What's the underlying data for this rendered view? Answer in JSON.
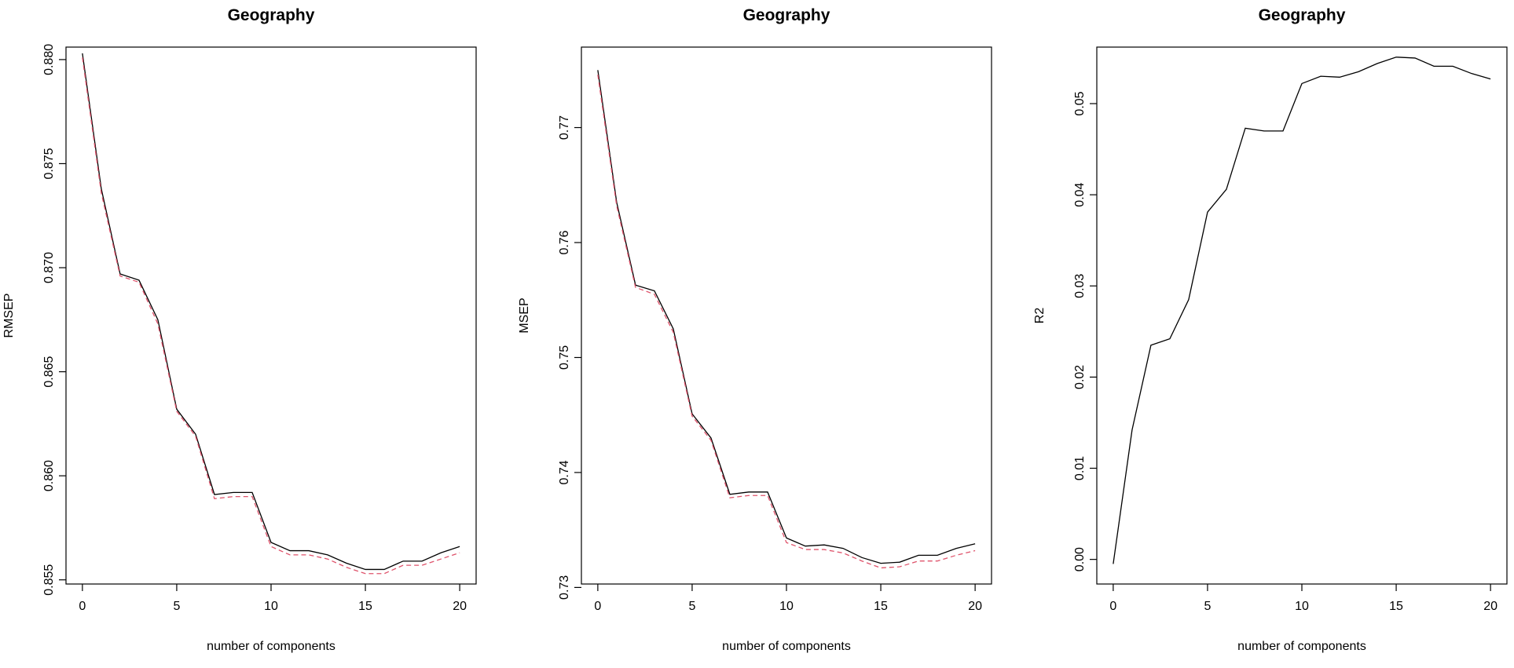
{
  "chart_data": [
    {
      "type": "line",
      "title": "Geography",
      "xlabel": "number of components",
      "ylabel": "RMSEP",
      "xlim": [
        0,
        20
      ],
      "ylim": [
        0.8548,
        0.8806
      ],
      "xticks": [
        "0",
        "5",
        "10",
        "15",
        "20"
      ],
      "yticks": [
        "0.855",
        "0.860",
        "0.865",
        "0.870",
        "0.875",
        "0.880"
      ],
      "x": [
        0,
        1,
        2,
        3,
        4,
        5,
        6,
        7,
        8,
        9,
        10,
        11,
        12,
        13,
        14,
        15,
        16,
        17,
        18,
        19,
        20
      ],
      "series": [
        {
          "style": "solid",
          "color": "#000000",
          "values": [
            0.8803,
            0.8738,
            0.8697,
            0.8694,
            0.8675,
            0.8632,
            0.862,
            0.8591,
            0.8592,
            0.8592,
            0.8568,
            0.8564,
            0.8564,
            0.8562,
            0.8558,
            0.8555,
            0.8555,
            0.8559,
            0.8559,
            0.8563,
            0.8566
          ]
        },
        {
          "style": "dashed",
          "color": "#DF536B",
          "values": [
            0.8801,
            0.8736,
            0.8696,
            0.8693,
            0.8673,
            0.8631,
            0.8619,
            0.8589,
            0.859,
            0.859,
            0.8566,
            0.8562,
            0.8562,
            0.856,
            0.8556,
            0.8553,
            0.8553,
            0.8557,
            0.8557,
            0.856,
            0.8563
          ]
        }
      ]
    },
    {
      "type": "line",
      "title": "Geography",
      "xlabel": "number of components",
      "ylabel": "MSEP",
      "xlim": [
        0,
        20
      ],
      "ylim": [
        0.7303,
        0.777
      ],
      "xticks": [
        "0",
        "5",
        "10",
        "15",
        "20"
      ],
      "yticks": [
        "0.73",
        "0.74",
        "0.75",
        "0.76",
        "0.77"
      ],
      "x": [
        0,
        1,
        2,
        3,
        4,
        5,
        6,
        7,
        8,
        9,
        10,
        11,
        12,
        13,
        14,
        15,
        16,
        17,
        18,
        19,
        20
      ],
      "series": [
        {
          "style": "solid",
          "color": "#000000",
          "values": [
            0.775,
            0.7635,
            0.7563,
            0.7558,
            0.7525,
            0.7451,
            0.743,
            0.7381,
            0.7383,
            0.7383,
            0.7343,
            0.7336,
            0.7337,
            0.7334,
            0.7326,
            0.7321,
            0.7322,
            0.7328,
            0.7328,
            0.7334,
            0.7338
          ]
        },
        {
          "style": "dashed",
          "color": "#DF536B",
          "values": [
            0.7746,
            0.7632,
            0.7561,
            0.7555,
            0.7522,
            0.7449,
            0.7428,
            0.7378,
            0.738,
            0.738,
            0.7339,
            0.7333,
            0.7333,
            0.733,
            0.7323,
            0.7317,
            0.7318,
            0.7323,
            0.7323,
            0.7328,
            0.7332
          ]
        }
      ]
    },
    {
      "type": "line",
      "title": "Geography",
      "xlabel": "number of components",
      "ylabel": "R2",
      "xlim": [
        0,
        20
      ],
      "ylim": [
        -0.0027,
        0.0562
      ],
      "xticks": [
        "0",
        "5",
        "10",
        "15",
        "20"
      ],
      "yticks": [
        "0.00",
        "0.01",
        "0.02",
        "0.03",
        "0.04",
        "0.05"
      ],
      "x": [
        0,
        1,
        2,
        3,
        4,
        5,
        6,
        7,
        8,
        9,
        10,
        11,
        12,
        13,
        14,
        15,
        16,
        17,
        18,
        19,
        20
      ],
      "series": [
        {
          "style": "solid",
          "color": "#000000",
          "values": [
            -0.0005,
            0.0142,
            0.0235,
            0.0242,
            0.0285,
            0.0381,
            0.0406,
            0.0473,
            0.047,
            0.047,
            0.0522,
            0.053,
            0.0529,
            0.0535,
            0.0544,
            0.0551,
            0.055,
            0.0541,
            0.0541,
            0.0533,
            0.0527
          ]
        }
      ]
    }
  ]
}
